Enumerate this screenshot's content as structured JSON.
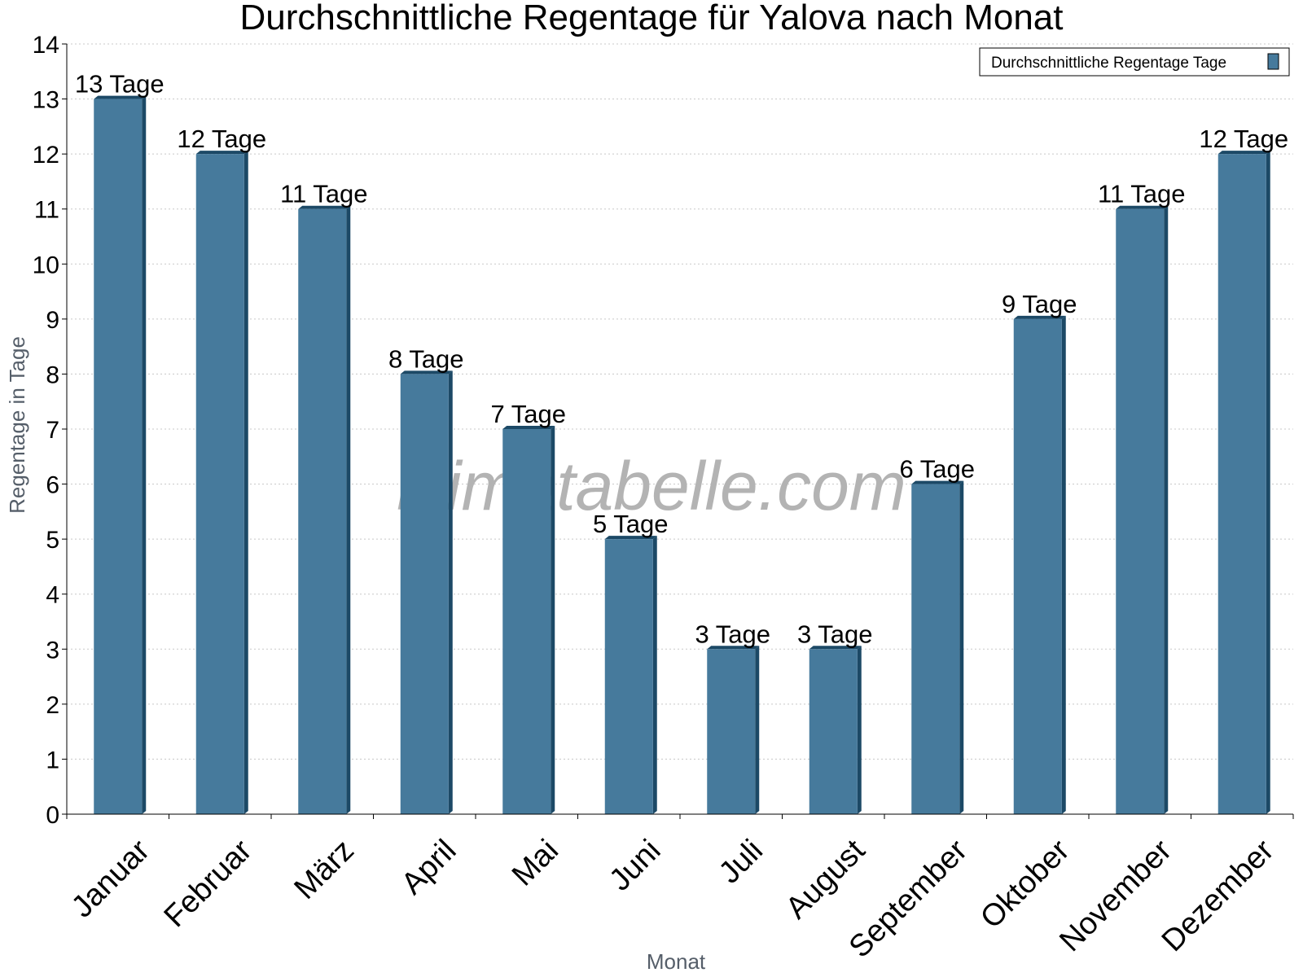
{
  "chart_data": {
    "type": "bar",
    "title": "Durchschnittliche Regentage für Yalova nach Monat",
    "xlabel": "Monat",
    "ylabel": "Regentage in Tage",
    "ylim": [
      0,
      14
    ],
    "y_ticks": [
      "0",
      "1",
      "2",
      "3",
      "4",
      "5",
      "6",
      "7",
      "8",
      "9",
      "10",
      "11",
      "12",
      "13",
      "14"
    ],
    "grid": true,
    "legend_position": "top-right",
    "categories": [
      "Januar",
      "Februar",
      "März",
      "April",
      "Mai",
      "Juni",
      "Juli",
      "August",
      "September",
      "Oktober",
      "November",
      "Dezember"
    ],
    "series": [
      {
        "name": "Durchschnittliche Regentage Tage",
        "values": [
          13,
          12,
          11,
          8,
          7,
          5,
          3,
          3,
          6,
          9,
          11,
          12
        ],
        "labels": [
          "13 Tage",
          "12 Tage",
          "11 Tage",
          "8 Tage",
          "7 Tage",
          "5 Tage",
          "3 Tage",
          "3 Tage",
          "6 Tage",
          "9 Tage",
          "11 Tage",
          "12 Tage"
        ],
        "color": "#467a9c",
        "side_color": "#1c4966"
      }
    ]
  },
  "watermark": "klimatabelle.com",
  "colors": {
    "axis": "#000000",
    "grid": "#c8c8c8",
    "axis_title": "#555e69",
    "watermark": "#b3b3b3"
  }
}
